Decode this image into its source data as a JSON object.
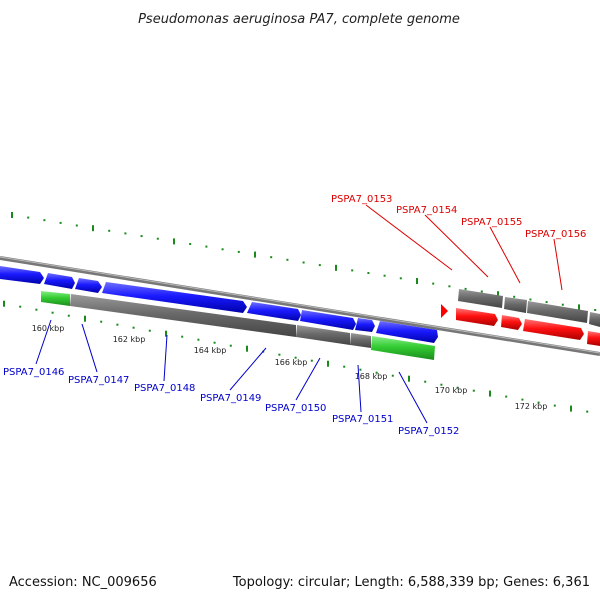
{
  "title": "Pseudomonas aeruginosa PA7, complete genome",
  "footer": {
    "accession": "Accession: NC_009656",
    "summary": "Topology: circular; Length: 6,588,339 bp; Genes: 6,361"
  },
  "colors": {
    "forward_cds": "#1a1aff",
    "reverse_cds": "#666666",
    "rna": "#33cc33",
    "highlight": "#ff0000",
    "ticks": "#1a8a1a",
    "label_blue": "#0000cc",
    "label_red": "#dd0000"
  },
  "tick_labels": [
    "160 kbp",
    "162 kbp",
    "164 kbp",
    "166 kbp",
    "168 kbp",
    "170 kbp",
    "172 kbp"
  ],
  "gene_labels": [
    {
      "text": "PSPA7_0146",
      "color": "blue"
    },
    {
      "text": "PSPA7_0147",
      "color": "blue"
    },
    {
      "text": "PSPA7_0148",
      "color": "blue"
    },
    {
      "text": "PSPA7_0149",
      "color": "blue"
    },
    {
      "text": "PSPA7_0150",
      "color": "blue"
    },
    {
      "text": "PSPA7_0151",
      "color": "blue"
    },
    {
      "text": "PSPA7_0152",
      "color": "blue"
    },
    {
      "text": "PSPA7_0153",
      "color": "red"
    },
    {
      "text": "PSPA7_0154",
      "color": "red"
    },
    {
      "text": "PSPA7_0155",
      "color": "red"
    },
    {
      "text": "PSPA7_0156",
      "color": "red"
    }
  ]
}
